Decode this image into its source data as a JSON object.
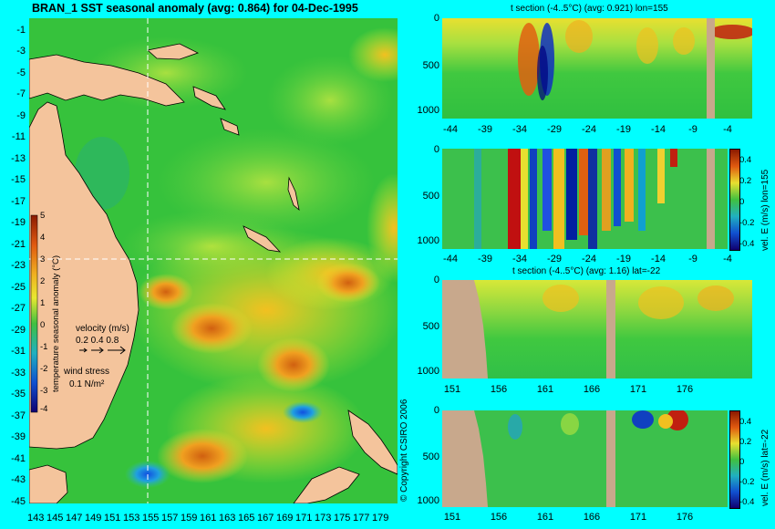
{
  "main_title": "BRAN_1 SST seasonal anomaly (avg: 0.864) for 04-Dec-1995",
  "map": {
    "lat_ticks": [
      "-1",
      "-3",
      "-5",
      "-7",
      "-9",
      "-11",
      "-13",
      "-15",
      "-17",
      "-19",
      "-21",
      "-23",
      "-25",
      "-27",
      "-29",
      "-31",
      "-33",
      "-35",
      "-37",
      "-39",
      "-41",
      "-43",
      "-45"
    ],
    "lon_ticks": [
      "143",
      "145",
      "147",
      "149",
      "151",
      "153",
      "155",
      "157",
      "159",
      "161",
      "163",
      "165",
      "167",
      "169",
      "171",
      "173",
      "175",
      "177",
      "179"
    ],
    "colorbar_label": "temperature seasonal anomaly (°C)",
    "colorbar_ticks": [
      "5",
      "4",
      "3",
      "2",
      "1",
      "0",
      "-1",
      "-2",
      "-3",
      "-4"
    ],
    "velocity_label": "velocity (m/s)",
    "velocity_values": "0.2 0.4 0.8",
    "wind_label": "wind stress",
    "wind_value": "0.1 N/m²",
    "copyright": "© Copyright CSIRO 2006"
  },
  "panels": [
    {
      "title": "t section (-4..5°C) (avg: 0.921) lon=155",
      "side_label": "",
      "x_ticks": [
        "-44",
        "-39",
        "-34",
        "-29",
        "-24",
        "-19",
        "-14",
        "-9",
        "-4"
      ],
      "depth_ticks": [
        "0",
        "500",
        "1000"
      ],
      "has_colorbar": false
    },
    {
      "title": "",
      "side_label": "vel. E (m/s) lon=155",
      "x_ticks": [
        "-44",
        "-39",
        "-34",
        "-29",
        "-24",
        "-19",
        "-14",
        "-9",
        "-4"
      ],
      "depth_ticks": [
        "0",
        "500",
        "1000"
      ],
      "has_colorbar": true,
      "colorbar_ticks": [
        "0.4",
        "0.2",
        "0",
        "-0.2",
        "-0.4"
      ]
    },
    {
      "title": "t section (-4..5°C) (avg: 1.16) lat=-22",
      "side_label": "",
      "x_ticks": [
        "151",
        "156",
        "161",
        "166",
        "171",
        "176"
      ],
      "depth_ticks": [
        "0",
        "500",
        "1000"
      ],
      "has_colorbar": false
    },
    {
      "title": "",
      "side_label": "vel. E (m/s) lat=-22",
      "x_ticks": [
        "151",
        "156",
        "161",
        "166",
        "171",
        "176"
      ],
      "depth_ticks": [
        "0",
        "500",
        "1000"
      ],
      "has_colorbar": true,
      "colorbar_ticks": [
        "0.4",
        "0.2",
        "0",
        "-0.2",
        "-0.4"
      ]
    }
  ],
  "colors": {
    "background": "#00ffff",
    "land": "#f4c49c",
    "section_land": "#c8a88c",
    "ocean_base": "#2fc43a"
  }
}
